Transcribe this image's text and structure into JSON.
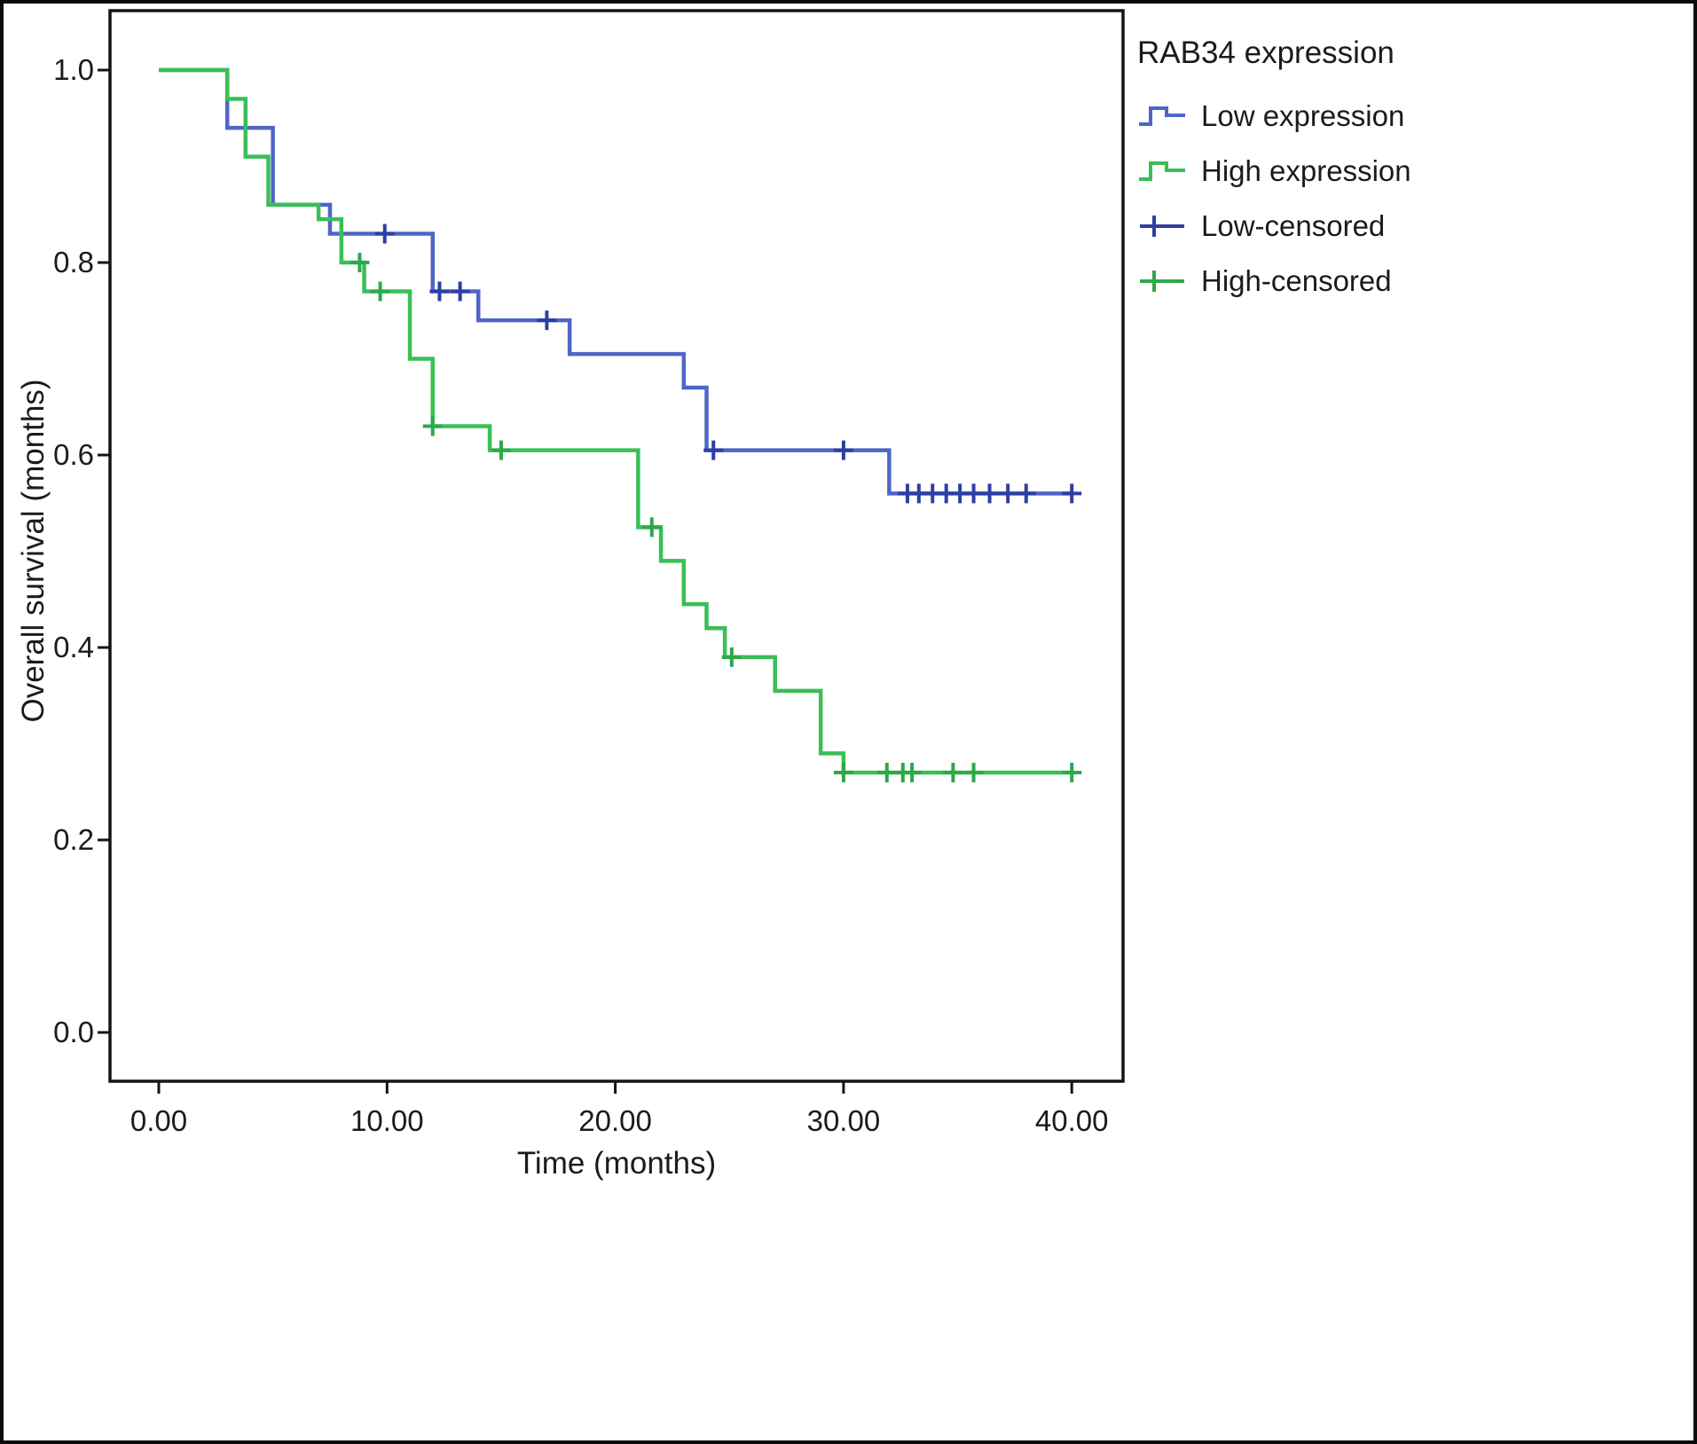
{
  "chart_data": {
    "type": "line",
    "subtype": "kaplan-meier-step",
    "title": "",
    "xlabel": "Time (months)",
    "ylabel": "Overall survival (months)",
    "xlim": [
      -2.1,
      42.3
    ],
    "ylim": [
      -0.05,
      1.06
    ],
    "grid": false,
    "legend_position": "top-right-outside",
    "x_ticks": [
      {
        "value": 0,
        "label": "0.00"
      },
      {
        "value": 10,
        "label": "10.00"
      },
      {
        "value": 20,
        "label": "20.00"
      },
      {
        "value": 30,
        "label": "30.00"
      },
      {
        "value": 40,
        "label": "40.00"
      }
    ],
    "y_ticks": [
      {
        "value": 0.0,
        "label": "0.0"
      },
      {
        "value": 0.2,
        "label": "0.2"
      },
      {
        "value": 0.4,
        "label": "0.4"
      },
      {
        "value": 0.6,
        "label": "0.6"
      },
      {
        "value": 0.8,
        "label": "0.8"
      },
      {
        "value": 1.0,
        "label": "1.0"
      }
    ],
    "series": [
      {
        "name": "Low expression",
        "color": "#5065c8",
        "points": [
          [
            0,
            1.0
          ],
          [
            3,
            0.94
          ],
          [
            5,
            0.86
          ],
          [
            7.5,
            0.83
          ],
          [
            12,
            0.77
          ],
          [
            14,
            0.74
          ],
          [
            18,
            0.705
          ],
          [
            23,
            0.67
          ],
          [
            24,
            0.605
          ],
          [
            32,
            0.56
          ],
          [
            40,
            0.56
          ]
        ]
      },
      {
        "name": "High expression",
        "color": "#3abf55",
        "points": [
          [
            0,
            1.0
          ],
          [
            3,
            0.97
          ],
          [
            3.8,
            0.91
          ],
          [
            4.8,
            0.86
          ],
          [
            7,
            0.845
          ],
          [
            8,
            0.8
          ],
          [
            9,
            0.77
          ],
          [
            11,
            0.7
          ],
          [
            12,
            0.63
          ],
          [
            14.5,
            0.605
          ],
          [
            21,
            0.525
          ],
          [
            22,
            0.49
          ],
          [
            23,
            0.445
          ],
          [
            24,
            0.42
          ],
          [
            24.8,
            0.39
          ],
          [
            27,
            0.355
          ],
          [
            29,
            0.29
          ],
          [
            30,
            0.27
          ],
          [
            40,
            0.27
          ]
        ]
      }
    ],
    "censored": [
      {
        "name": "Low-censored",
        "color": "#2e3fa3",
        "points": [
          [
            9.9,
            0.83
          ],
          [
            12.3,
            0.77
          ],
          [
            13.2,
            0.77
          ],
          [
            17,
            0.74
          ],
          [
            24.3,
            0.605
          ],
          [
            30,
            0.605
          ],
          [
            32.8,
            0.56
          ],
          [
            33.3,
            0.56
          ],
          [
            33.9,
            0.56
          ],
          [
            34.5,
            0.56
          ],
          [
            35.1,
            0.56
          ],
          [
            35.7,
            0.56
          ],
          [
            36.4,
            0.56
          ],
          [
            37.2,
            0.56
          ],
          [
            38,
            0.56
          ],
          [
            40,
            0.56
          ]
        ]
      },
      {
        "name": "High-censored",
        "color": "#2da84a",
        "points": [
          [
            8.8,
            0.8
          ],
          [
            9.7,
            0.77
          ],
          [
            12,
            0.63
          ],
          [
            15,
            0.605
          ],
          [
            21.6,
            0.525
          ],
          [
            25.1,
            0.39
          ],
          [
            30,
            0.27
          ],
          [
            31.9,
            0.27
          ],
          [
            32.6,
            0.27
          ],
          [
            33,
            0.27
          ],
          [
            34.8,
            0.27
          ],
          [
            35.7,
            0.27
          ],
          [
            40,
            0.27
          ]
        ]
      }
    ],
    "legend": {
      "title": "RAB34 expression",
      "items": [
        {
          "label": "Low expression",
          "glyph": "step-line",
          "color_ref": "low"
        },
        {
          "label": "High expression",
          "glyph": "step-line",
          "color_ref": "high"
        },
        {
          "label": "Low-censored",
          "glyph": "plus-line",
          "color_ref": "low_censor"
        },
        {
          "label": "High-censored",
          "glyph": "plus-line",
          "color_ref": "high_censor"
        }
      ]
    },
    "colors": {
      "low": "#5065c8",
      "high": "#3abf55",
      "low_censor": "#2e3fa3",
      "high_censor": "#2da84a",
      "axis": "#141414",
      "text": "#1b1b1b"
    }
  }
}
